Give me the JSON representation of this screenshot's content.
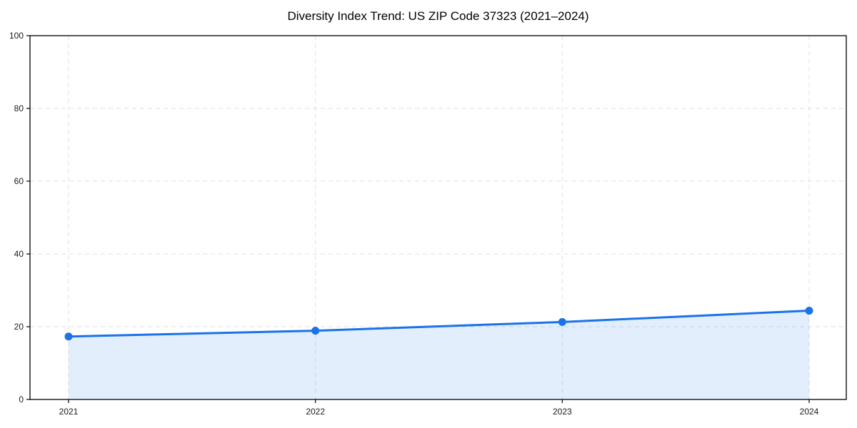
{
  "page": {
    "background": "#ffffff"
  },
  "chart_data": {
    "type": "line",
    "title": "Diversity Index Trend: US ZIP Code 37323 (2021–2024)",
    "x": [
      2021,
      2022,
      2023,
      2024
    ],
    "series": [
      {
        "name": "Diversity Index",
        "values": [
          17.3,
          18.9,
          21.3,
          24.4
        ],
        "marker": "circle",
        "area_fill": true
      }
    ],
    "xlabel": "",
    "ylabel": "",
    "ylim": [
      0,
      100
    ],
    "yticks": [
      0,
      20,
      40,
      60,
      80,
      100
    ],
    "xtick_labels": [
      "2021",
      "2022",
      "2023",
      "2024"
    ],
    "grid": true,
    "grid_style": "dashed",
    "legend_position": "none",
    "colors": {
      "line": "#1a73e8",
      "marker": "#1a73e8",
      "fill": "#1a73e8",
      "fill_opacity": 0.12,
      "grid": "#e2e2e2",
      "axis": "#000000",
      "tick_label": "#1a1a1a",
      "title": "#000000"
    }
  }
}
